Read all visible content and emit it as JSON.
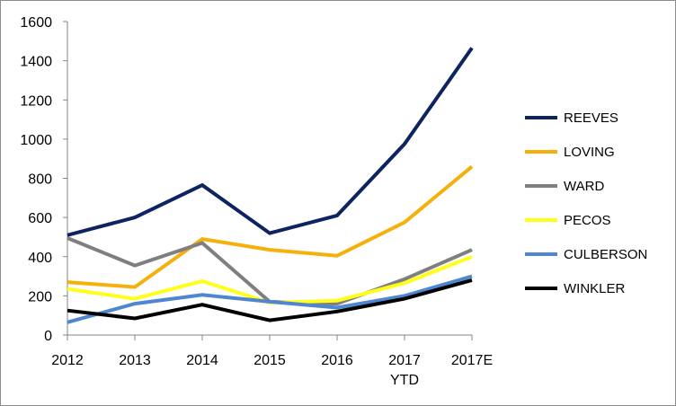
{
  "chart_data": {
    "type": "line",
    "categories": [
      "2012",
      "2013",
      "2014",
      "2015",
      "2016",
      "2017\nYTD",
      "2017E"
    ],
    "ylim": [
      0,
      1600
    ],
    "yticks": [
      0,
      200,
      400,
      600,
      800,
      1000,
      1200,
      1400,
      1600
    ],
    "grid": false,
    "legend_position": "right",
    "series": [
      {
        "name": "REEVES",
        "color": "#0d2460",
        "values": [
          510,
          600,
          765,
          520,
          610,
          975,
          1465
        ]
      },
      {
        "name": "LOVING",
        "color": "#f5b00c",
        "values": [
          270,
          245,
          490,
          435,
          405,
          575,
          860
        ]
      },
      {
        "name": "WARD",
        "color": "#7f7f7f",
        "values": [
          495,
          355,
          470,
          170,
          160,
          285,
          435
        ]
      },
      {
        "name": "PECOS",
        "color": "#ffff1a",
        "values": [
          235,
          185,
          275,
          165,
          175,
          265,
          400
        ]
      },
      {
        "name": "CULBERSON",
        "color": "#4f86d2",
        "values": [
          65,
          160,
          205,
          170,
          140,
          200,
          300
        ]
      },
      {
        "name": "WINKLER",
        "color": "#000000",
        "values": [
          125,
          85,
          155,
          75,
          120,
          185,
          280
        ]
      }
    ]
  }
}
